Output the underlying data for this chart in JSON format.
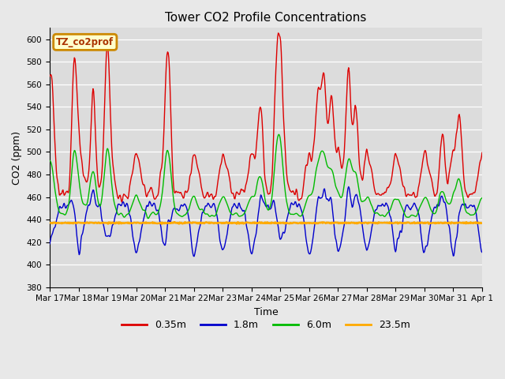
{
  "title": "Tower CO2 Profile Concentrations",
  "xlabel": "Time",
  "ylabel": "CO2 (ppm)",
  "ylim": [
    380,
    610
  ],
  "yticks": [
    380,
    400,
    420,
    440,
    460,
    480,
    500,
    520,
    540,
    560,
    580,
    600
  ],
  "colors": {
    "0.35m": "#dd0000",
    "1.8m": "#0000cc",
    "6.0m": "#00bb00",
    "23.5m": "#ffaa00"
  },
  "legend_labels": [
    "0.35m",
    "1.8m",
    "6.0m",
    "23.5m"
  ],
  "label_box_text": "TZ_co2prof",
  "label_box_bg": "#ffffcc",
  "label_box_edge": "#cc8800",
  "orange_val": 437,
  "fig_bg": "#e8e8e8",
  "plot_bg": "#dcdcdc",
  "grid_color": "#ffffff",
  "num_points": 720,
  "num_days": 15
}
